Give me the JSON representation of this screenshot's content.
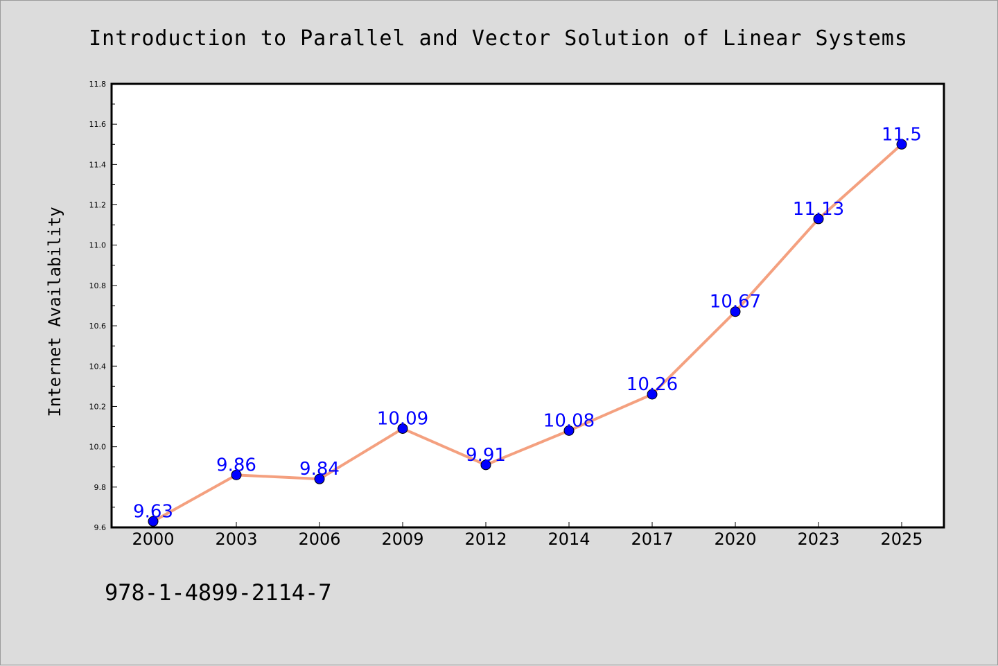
{
  "chart_data": {
    "type": "line",
    "title": "Introduction to Parallel and Vector Solution of Linear Systems",
    "xlabel": "",
    "ylabel": "Internet Availability",
    "categories": [
      "2000",
      "2003",
      "2006",
      "2009",
      "2012",
      "2014",
      "2017",
      "2020",
      "2023",
      "2025"
    ],
    "series": [
      {
        "values": [
          9.63,
          9.86,
          9.84,
          10.09,
          9.91,
          10.08,
          10.26,
          10.67,
          11.13,
          11.5
        ]
      }
    ],
    "data_labels": [
      "9.63",
      "9.86",
      "9.84",
      "10.09",
      "9.91",
      "10.08",
      "10.26",
      "10.67",
      "11.13",
      "11.5"
    ],
    "ylim": [
      9.6,
      11.8
    ],
    "yticks": [
      "9.6",
      "9.8",
      "10.0",
      "10.2",
      "10.4",
      "10.6",
      "10.8",
      "11.0",
      "11.2",
      "11.4",
      "11.6",
      "11.8"
    ],
    "grid": false,
    "legend": "none",
    "colors": {
      "line": "#f4a07f",
      "marker": "#0000ff",
      "marker_edge": "#000000",
      "data_label": "#0000ff",
      "background": "#dcdcdc",
      "plot_background": "#ffffff"
    }
  },
  "footer_text": "978-1-4899-2114-7"
}
